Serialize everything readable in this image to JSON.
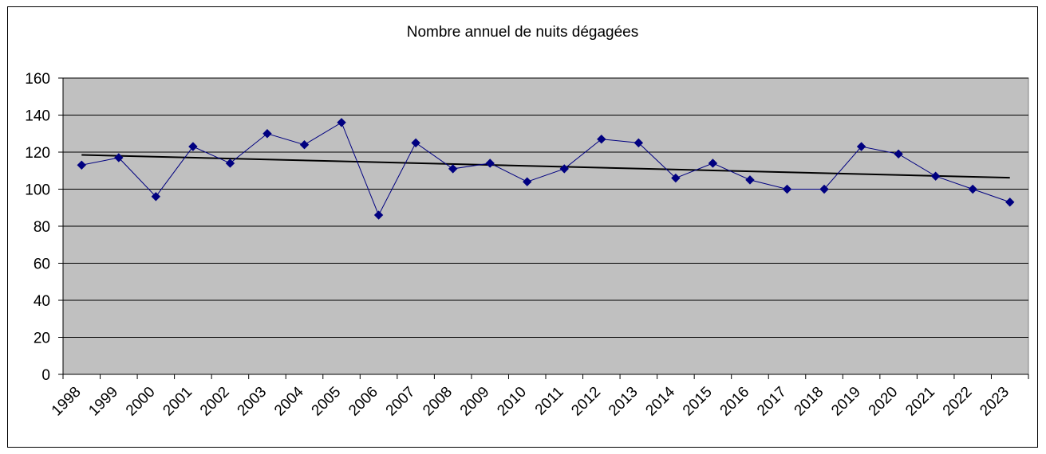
{
  "chart_data": {
    "type": "line",
    "title": "Nombre annuel de nuits dégagées",
    "xlabel": "",
    "ylabel": "",
    "categories": [
      "1998",
      "1999",
      "2000",
      "2001",
      "2002",
      "2003",
      "2004",
      "2005",
      "2006",
      "2007",
      "2008",
      "2009",
      "2010",
      "2011",
      "2012",
      "2013",
      "2014",
      "2015",
      "2016",
      "2017",
      "2018",
      "2019",
      "2020",
      "2021",
      "2022",
      "2023"
    ],
    "series": [
      {
        "values": [
          113,
          117,
          96,
          123,
          114,
          130,
          124,
          136,
          86,
          125,
          111,
          114,
          104,
          111,
          127,
          125,
          106,
          114,
          105,
          100,
          100,
          123,
          119,
          107,
          100,
          93
        ],
        "color": "#000080",
        "marker": "diamond"
      }
    ],
    "trendline": {
      "start": 118.5,
      "end": 106.2,
      "color": "#000000"
    },
    "ylim": [
      0,
      160
    ],
    "yticks": [
      "0",
      "20",
      "40",
      "60",
      "80",
      "100",
      "120",
      "140",
      "160"
    ],
    "grid": true,
    "plot_background": "#c0c0c0",
    "legend": "none"
  }
}
